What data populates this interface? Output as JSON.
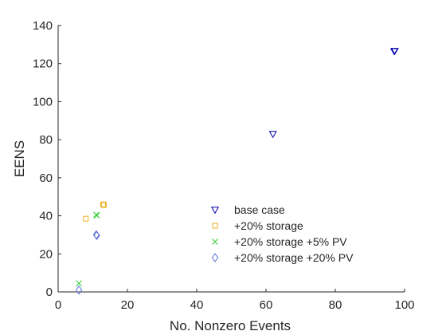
{
  "chart_data": {
    "type": "scatter",
    "title": "",
    "xlabel": "No. Nonzero Events",
    "ylabel": "EENS",
    "xlim": [
      0,
      100
    ],
    "ylim": [
      0,
      140
    ],
    "xticks": [
      "0",
      "20",
      "40",
      "60",
      "80",
      "100"
    ],
    "yticks": [
      "0",
      "20",
      "40",
      "60",
      "80",
      "100",
      "120",
      "140"
    ],
    "grid": false,
    "legend_position": "lower-right inside",
    "series": [
      {
        "name": "base case",
        "marker": "triangle-down",
        "color": "#0000ad",
        "points": [
          [
            62,
            83
          ],
          [
            97,
            126.5
          ],
          [
            97,
            127
          ]
        ]
      },
      {
        "name": "+20% storage",
        "marker": "square",
        "color": "#edb120",
        "points": [
          [
            8,
            38.5
          ],
          [
            13,
            46
          ],
          [
            13,
            46
          ]
        ]
      },
      {
        "name": "+20% storage +5% PV",
        "marker": "x",
        "color": "#33cc33",
        "points": [
          [
            6,
            4.5
          ],
          [
            11,
            40.5
          ],
          [
            11,
            40.5
          ]
        ]
      },
      {
        "name": " +20% storage +20% PV",
        "marker": "diamond",
        "color": "#5a6fd6",
        "points": [
          [
            6,
            1
          ],
          [
            11,
            30
          ],
          [
            11,
            30
          ]
        ]
      }
    ]
  }
}
